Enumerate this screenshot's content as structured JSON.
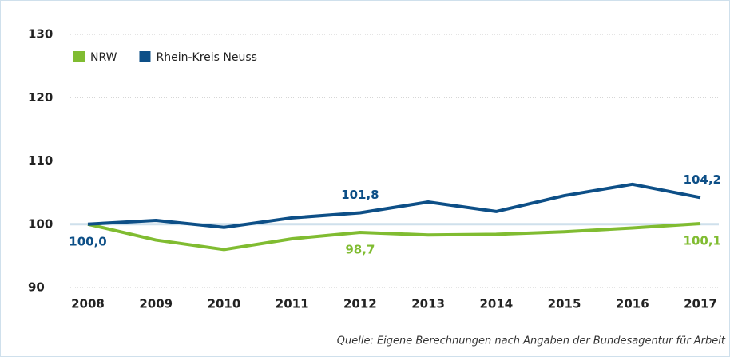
{
  "chart_data": {
    "type": "line",
    "categories": [
      "2008",
      "2009",
      "2010",
      "2011",
      "2012",
      "2013",
      "2014",
      "2015",
      "2016",
      "2017"
    ],
    "series": [
      {
        "name": "NRW",
        "color": "#80bc31",
        "values": [
          100.0,
          97.5,
          96.0,
          97.7,
          98.7,
          98.3,
          98.4,
          98.8,
          99.4,
          100.1
        ],
        "value_labels": [
          null,
          null,
          null,
          null,
          "98,7",
          null,
          null,
          null,
          null,
          "100,1"
        ]
      },
      {
        "name": "Rhein-Kreis Neuss",
        "color": "#0d4f87",
        "values": [
          100.0,
          100.6,
          99.5,
          101.0,
          101.8,
          103.5,
          102.0,
          104.5,
          106.3,
          104.2
        ],
        "value_labels": [
          "100,0",
          null,
          null,
          null,
          "101,8",
          null,
          null,
          null,
          null,
          "104,2"
        ]
      }
    ],
    "ylim": [
      90,
      130
    ],
    "yticks": [
      90,
      100,
      110,
      120,
      130
    ],
    "grid": true,
    "reference_line": 100,
    "source": "Quelle: Eigene Berechnungen nach Angaben der Bundesagentur für Arbeit"
  }
}
